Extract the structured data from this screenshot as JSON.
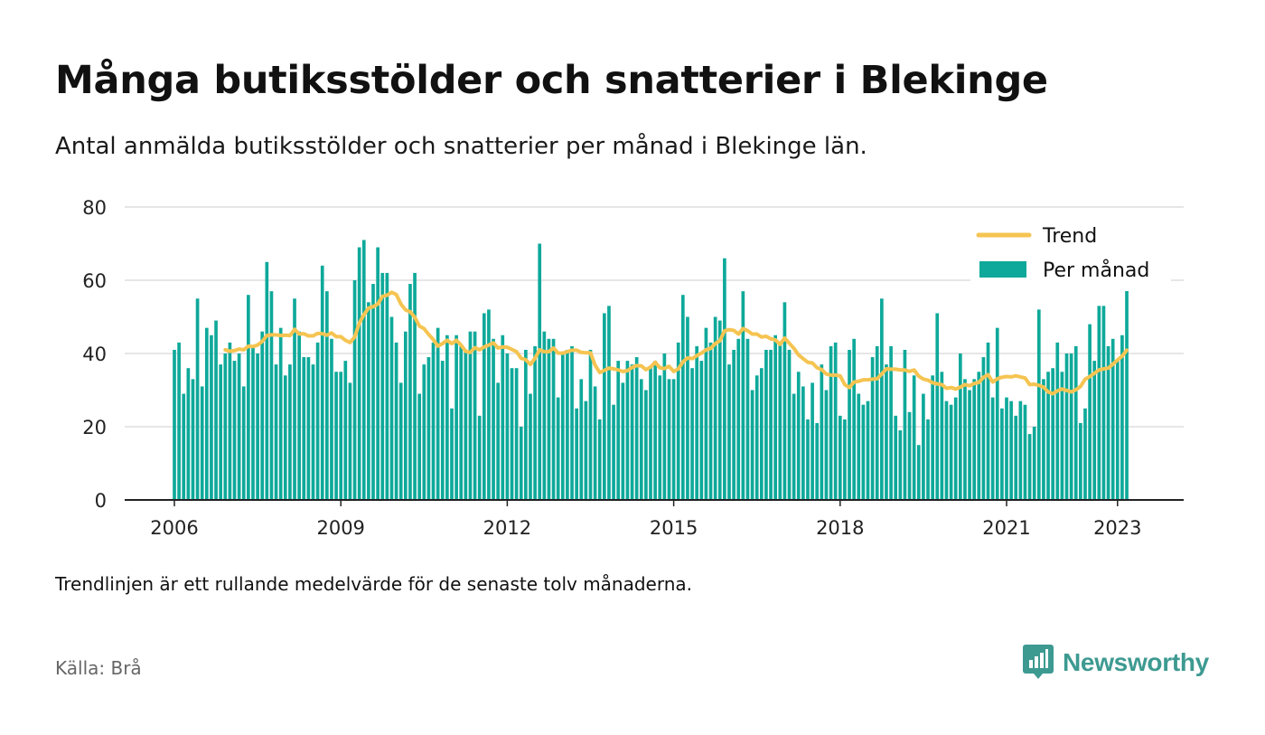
{
  "header": {
    "title": "Många butiksstölder och snatterier i Blekinge",
    "subtitle": "Antal anmälda butiksstölder och snatterier per månad i Blekinge län."
  },
  "footer": {
    "note": "Trendlinjen är ett rullande medelvärde för de senaste tolv månaderna.",
    "source": "Källa: Brå",
    "brand": "Newsworthy"
  },
  "colors": {
    "bar": "#0ea99a",
    "trend": "#f5c451",
    "grid": "#dddddd",
    "axis": "#222222",
    "brand": "#3d9a91"
  },
  "chart_data": {
    "type": "bar",
    "title": "Många butiksstölder och snatterier i Blekinge",
    "start": "2006-01",
    "end": "2023-05",
    "ylim": [
      0,
      80
    ],
    "yticks": [
      0,
      20,
      40,
      60,
      80
    ],
    "xticks": [
      "2006",
      "2009",
      "2012",
      "2015",
      "2018",
      "2021",
      "2023"
    ],
    "grid": true,
    "legend": {
      "placement": "top-right",
      "entries": [
        "Trend",
        "Per månad"
      ]
    },
    "series": [
      {
        "name": "Per månad",
        "type": "bar",
        "values": [
          41,
          43,
          29,
          36,
          33,
          55,
          31,
          47,
          45,
          49,
          37,
          40,
          43,
          38,
          40,
          31,
          56,
          42,
          40,
          46,
          65,
          57,
          37,
          47,
          34,
          37,
          55,
          46,
          39,
          39,
          37,
          43,
          64,
          57,
          44,
          35,
          35,
          38,
          32,
          60,
          69,
          71,
          54,
          59,
          69,
          62,
          62,
          50,
          43,
          32,
          46,
          59,
          62,
          29,
          37,
          39,
          43,
          47,
          38,
          45,
          25,
          45,
          42,
          41,
          46,
          46,
          23,
          51,
          52,
          44,
          32,
          45,
          40,
          36,
          36,
          20,
          41,
          29,
          42,
          70,
          46,
          44,
          44,
          28,
          40,
          41,
          42,
          25,
          33,
          27,
          41,
          31,
          22,
          51,
          53,
          26,
          38,
          32,
          38,
          37,
          39,
          33,
          30,
          36,
          38,
          34,
          40,
          33,
          33,
          43,
          56,
          50,
          36,
          42,
          38,
          47,
          43,
          50,
          49,
          66,
          37,
          41,
          44,
          57,
          44,
          30,
          34,
          36,
          41,
          41,
          45,
          43,
          54,
          41,
          29,
          35,
          31,
          22,
          32,
          21,
          37,
          30,
          42,
          43,
          23,
          22,
          41,
          44,
          29,
          26,
          27,
          39,
          42,
          55,
          37,
          42,
          23,
          19,
          41,
          24,
          34,
          15,
          29,
          22,
          34,
          51,
          35,
          27,
          26,
          28,
          40,
          33,
          30,
          33,
          35,
          39,
          43,
          28,
          47,
          25,
          28,
          27,
          23,
          27,
          26,
          18,
          20,
          52,
          33,
          35,
          36,
          43,
          35,
          40,
          40,
          42,
          21,
          25,
          48,
          38,
          53,
          53,
          42,
          44,
          38,
          45,
          62
        ]
      },
      {
        "name": "Trend",
        "type": "line",
        "values": [
          null,
          null,
          null,
          null,
          null,
          null,
          null,
          null,
          null,
          null,
          null,
          41,
          40.6,
          40.8,
          41.2,
          41.0,
          42.0,
          41.9,
          42.3,
          43.3,
          44.9,
          45.1,
          45.1,
          44.9,
          45.0,
          44.9,
          46.6,
          45.3,
          45.4,
          44.8,
          44.8,
          45.5,
          45.4,
          45.0,
          45.6,
          44.6,
          44.6,
          43.6,
          43.0,
          44.5,
          48.3,
          50.6,
          52.4,
          52.8,
          53.5,
          55.6,
          55.9,
          56.7,
          56.1,
          53.5,
          51.9,
          51.4,
          49.9,
          47.5,
          46.8,
          45.2,
          43.8,
          42.0,
          42.7,
          43.6,
          42.7,
          43.6,
          42.3,
          40.6,
          40.3,
          41.6,
          41.0,
          41.8,
          42.3,
          42.9,
          41.5,
          41.8,
          41.7,
          41.1,
          40.5,
          38.7,
          38.3,
          37.0,
          38.7,
          41.0,
          40.5,
          40.5,
          41.5,
          40.1,
          40.1,
          40.5,
          40.9,
          40.9,
          40.3,
          40.2,
          40.2,
          36.8,
          34.8,
          35.4,
          36.0,
          35.8,
          35.5,
          35.1,
          35.3,
          36.2,
          36.7,
          36.6,
          35.6,
          36.3,
          37.6,
          36.1,
          35.9,
          36.5,
          35.1,
          35.8,
          37.7,
          38.8,
          38.6,
          39.4,
          40.1,
          41.0,
          41.4,
          42.7,
          43.5,
          46.2,
          46.5,
          46.3,
          45.3,
          46.8,
          46.2,
          45.3,
          45.3,
          44.5,
          44.7,
          44.0,
          43.7,
          42.5,
          44.2,
          42.8,
          41.4,
          39.6,
          38.6,
          37.6,
          37.4,
          36.1,
          35.6,
          34.4,
          34.1,
          34.1,
          33.9,
          31.5,
          30.7,
          32.2,
          32.4,
          32.8,
          32.8,
          33.0,
          33.1,
          34.4,
          35.8,
          35.7,
          35.7,
          35.5,
          35.5,
          35.1,
          35.5,
          33.8,
          33.0,
          32.7,
          32.0,
          31.7,
          31.5,
          30.5,
          30.7,
          30.3,
          30.8,
          31.5,
          31.2,
          31.8,
          32.1,
          33.5,
          34.2,
          32.2,
          33.1,
          33.5,
          33.7,
          33.6,
          33.9,
          33.6,
          33.3,
          31.5,
          31.6,
          31.3,
          30.8,
          29.5,
          29.0,
          29.8,
          30.3,
          29.9,
          29.5,
          30.1,
          31.0,
          33.0,
          33.7,
          34.6,
          35.5,
          35.8,
          36.0,
          37.1,
          38.2,
          39.3,
          40.9
        ]
      }
    ]
  }
}
